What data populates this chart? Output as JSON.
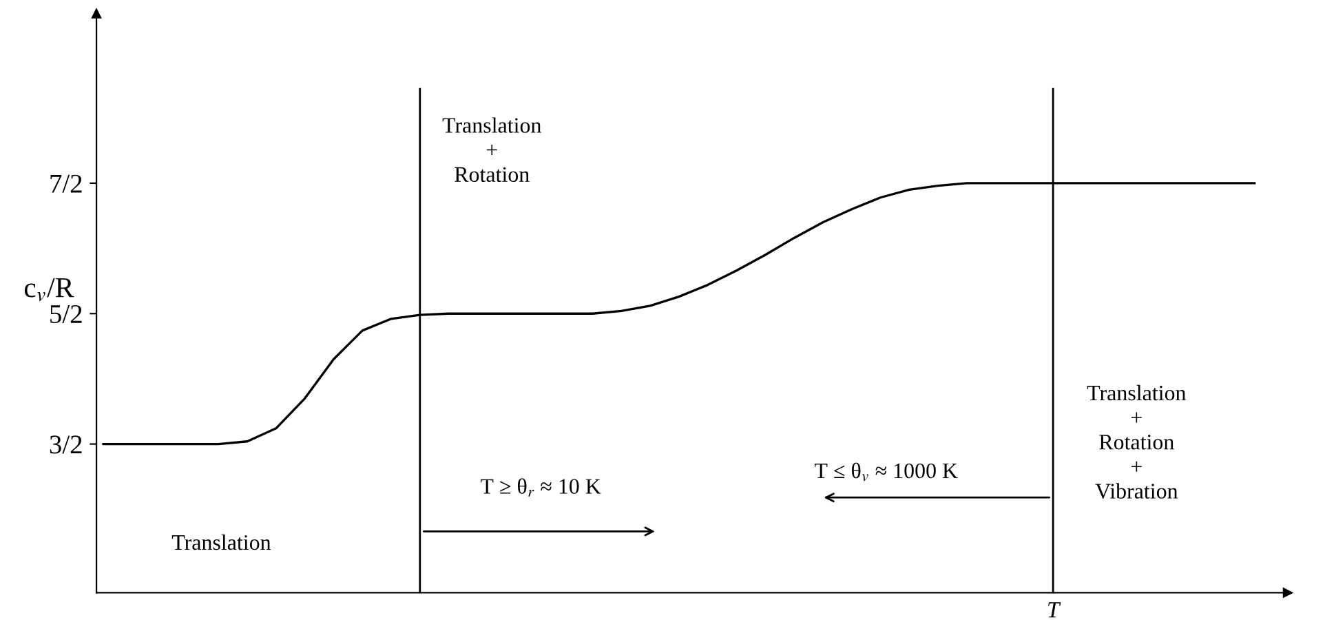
{
  "chart_data": {
    "type": "line",
    "categories": [
      null,
      null,
      null,
      null,
      null,
      null,
      null,
      null,
      null,
      null,
      null,
      null,
      null,
      null,
      null,
      null,
      null,
      null,
      null,
      null,
      null,
      null,
      null,
      null,
      null,
      null,
      null,
      null,
      null,
      null,
      null,
      null,
      null,
      null,
      null,
      null,
      null,
      null,
      null,
      null,
      null
    ],
    "series": [
      {
        "color": "#000000",
        "values": [
          1.5,
          1.5,
          1.5,
          1.5,
          1.5,
          1.52,
          1.62,
          1.85,
          2.15,
          2.37,
          2.46,
          2.49,
          2.5,
          2.5,
          2.5,
          2.5,
          2.5,
          2.5,
          2.52,
          2.56,
          2.63,
          2.72,
          2.83,
          2.95,
          3.08,
          3.2,
          3.3,
          3.39,
          3.45,
          3.48,
          3.5,
          3.5,
          3.5,
          3.5,
          3.5,
          3.5,
          3.5,
          3.5,
          3.5,
          3.5,
          3.5
        ]
      }
    ],
    "ylabel": "c$_{v}$/R",
    "xlabel": "T",
    "ylim": [
      0.36,
      4.8
    ],
    "yticks": [
      {
        "value": 1.5,
        "label": "3/2"
      },
      {
        "value": 2.5,
        "label": "5/2"
      },
      {
        "value": 3.5,
        "label": "7/2"
      }
    ],
    "annotations": [
      "Translation\n+\nRotation",
      "Translation\n+\nRotation\n+\nVibration",
      "Translation",
      "T ≥ θ$_{r}$ ≈ 10 K",
      "T ≤ θ$_{v}$ ≈ 1000 K"
    ],
    "grid": false,
    "legend": false,
    "marker": "none",
    "line_style": "solid"
  }
}
